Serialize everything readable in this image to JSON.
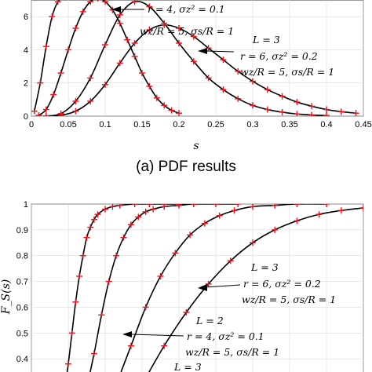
{
  "chart_data": [
    {
      "type": "line",
      "panel": "top",
      "caption": "(a) PDF results",
      "xlabel": "s",
      "ylabel": "",
      "xlim": [
        0,
        0.45
      ],
      "ylim": [
        0,
        7
      ],
      "xticks": [
        "0",
        "0.05",
        "0.1",
        "0.15",
        "0.2",
        "0.25",
        "0.3",
        "0.35",
        "0.4",
        "0.45"
      ],
      "yticks": [
        "0",
        "2",
        "4",
        "6"
      ],
      "grid": true,
      "curve_color": "#000000",
      "marker_color": "#e8101a",
      "series": [
        {
          "x": [
            0.004,
            0.012,
            0.02,
            0.028,
            0.036,
            0.044,
            0.052
          ],
          "y": [
            0.3,
            2.0,
            4.2,
            6.0,
            6.9,
            7.2,
            7.4
          ]
        },
        {
          "x": [
            0.01,
            0.02,
            0.03,
            0.04,
            0.05,
            0.06,
            0.07,
            0.08,
            0.09,
            0.1,
            0.11,
            0.12,
            0.13,
            0.14,
            0.15,
            0.16,
            0.17,
            0.18,
            0.19,
            0.2
          ],
          "y": [
            0.05,
            0.4,
            1.3,
            2.6,
            4.0,
            5.3,
            6.3,
            6.9,
            7.1,
            6.9,
            6.4,
            5.6,
            4.6,
            3.6,
            2.6,
            1.8,
            1.1,
            0.65,
            0.35,
            0.18
          ]
        },
        {
          "x": [
            0.02,
            0.04,
            0.06,
            0.08,
            0.1,
            0.12,
            0.14,
            0.16,
            0.18,
            0.2,
            0.22,
            0.24,
            0.26,
            0.28,
            0.3,
            0.32,
            0.34,
            0.36,
            0.38,
            0.4
          ],
          "y": [
            0.01,
            0.15,
            0.9,
            2.3,
            4.3,
            6.1,
            6.9,
            6.6,
            5.6,
            4.4,
            3.3,
            2.3,
            1.6,
            1.05,
            0.65,
            0.4,
            0.24,
            0.13,
            0.07,
            0.04
          ]
        },
        {
          "x": [
            0.02,
            0.04,
            0.06,
            0.08,
            0.1,
            0.12,
            0.14,
            0.16,
            0.18,
            0.2,
            0.22,
            0.24,
            0.26,
            0.28,
            0.3,
            0.32,
            0.34,
            0.36,
            0.38,
            0.4,
            0.42,
            0.44
          ],
          "y": [
            0.0,
            0.05,
            0.3,
            0.9,
            1.9,
            3.2,
            4.4,
            5.2,
            5.5,
            5.3,
            4.8,
            4.1,
            3.4,
            2.7,
            2.1,
            1.6,
            1.2,
            0.85,
            0.6,
            0.4,
            0.27,
            0.18
          ]
        }
      ],
      "annotations": [
        {
          "lines": [
            "r = 4, σz² = 0.1"
          ]
        },
        {
          "lines": [
            "wz/R = 5, σs/R = 1"
          ]
        },
        {
          "lines": [
            "L = 3",
            "r = 6, σz² = 0.2",
            "wz/R = 5, σs/R = 1"
          ]
        }
      ]
    },
    {
      "type": "line",
      "panel": "bottom",
      "ylabel": "F_S(s)",
      "ylim": [
        0.3,
        1.0
      ],
      "yticks": [
        "0.4",
        "0.5",
        "0.6",
        "0.7",
        "0.8",
        "0.9",
        "1"
      ],
      "grid": true,
      "curve_color": "#000000",
      "marker_color": "#e8101a",
      "series": [
        {
          "x": [
            0.046,
            0.05,
            0.055,
            0.06,
            0.065,
            0.07,
            0.075,
            0.08,
            0.085,
            0.09,
            0.1,
            0.11,
            0.12,
            0.14,
            0.16,
            0.18,
            0.2,
            0.22
          ],
          "y": [
            0.3,
            0.38,
            0.5,
            0.62,
            0.72,
            0.8,
            0.87,
            0.91,
            0.94,
            0.96,
            0.98,
            0.99,
            0.995,
            1.0,
            1.0,
            1.0,
            1.0,
            1.0
          ]
        },
        {
          "x": [
            0.076,
            0.085,
            0.095,
            0.105,
            0.115,
            0.125,
            0.135,
            0.145,
            0.155,
            0.165,
            0.18,
            0.2,
            0.22,
            0.25,
            0.28
          ],
          "y": [
            0.3,
            0.42,
            0.57,
            0.7,
            0.8,
            0.87,
            0.92,
            0.95,
            0.97,
            0.98,
            0.99,
            0.995,
            1.0,
            1.0,
            1.0
          ]
        },
        {
          "x": [
            0.115,
            0.135,
            0.155,
            0.175,
            0.195,
            0.215,
            0.235,
            0.255,
            0.275,
            0.3,
            0.33,
            0.36,
            0.4
          ],
          "y": [
            0.3,
            0.45,
            0.6,
            0.72,
            0.81,
            0.88,
            0.925,
            0.955,
            0.975,
            0.99,
            0.995,
            1.0,
            1.0
          ]
        },
        {
          "x": [
            0.15,
            0.18,
            0.21,
            0.24,
            0.27,
            0.3,
            0.33,
            0.36,
            0.39,
            0.42,
            0.45
          ],
          "y": [
            0.3,
            0.45,
            0.58,
            0.69,
            0.78,
            0.85,
            0.9,
            0.935,
            0.96,
            0.975,
            0.985
          ]
        }
      ],
      "annotations": [
        {
          "lines": [
            "L = 3",
            "r = 6, σz² = 0.2",
            "wz/R = 5, σs/R = 1"
          ]
        },
        {
          "lines": [
            "L = 2",
            "r = 4, σz² = 0.1",
            "wz/R = 5, σs/R = 1"
          ]
        },
        {
          "lines": [
            "L = 3"
          ]
        }
      ]
    }
  ]
}
